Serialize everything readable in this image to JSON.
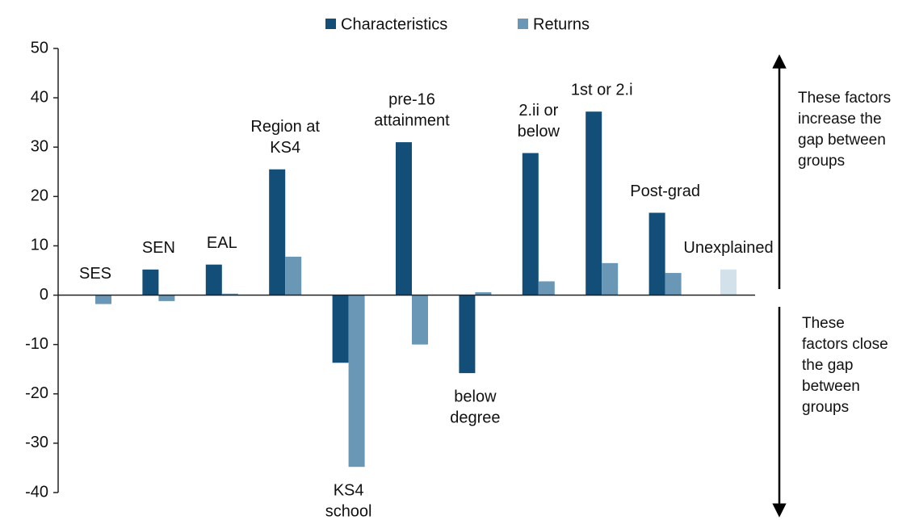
{
  "chart_data": {
    "type": "bar",
    "categories": [
      [
        "SES"
      ],
      [
        "SEN"
      ],
      [
        "EAL"
      ],
      [
        "Region at",
        "KS4"
      ],
      [
        "KS4",
        "school"
      ],
      [
        "pre-16",
        "attainment"
      ],
      [
        "below",
        "degree"
      ],
      [
        "2.ii or",
        "below"
      ],
      [
        "1st or 2.i"
      ],
      [
        "Post-grad"
      ],
      [
        "Unexplained"
      ]
    ],
    "series": [
      {
        "name": "Characteristics",
        "color": "#124e78",
        "values": [
          0,
          5.2,
          6.2,
          25.5,
          -13.7,
          31,
          -15.8,
          28.8,
          37.2,
          16.7,
          null
        ]
      },
      {
        "name": "Returns",
        "color": "#6b97b6",
        "values": [
          -1.8,
          -1.2,
          0.3,
          7.8,
          -34.8,
          -10,
          0.6,
          2.8,
          6.5,
          4.5,
          null
        ]
      }
    ],
    "unexplained": {
      "value": 5.2,
      "color": "#d3e2ea"
    },
    "ylim": [
      -40,
      50
    ],
    "yticks": [
      -40,
      -30,
      -20,
      -10,
      0,
      10,
      20,
      30,
      40,
      50
    ],
    "annotations": {
      "increase": [
        "These factors",
        "increase the",
        "gap between",
        "groups"
      ],
      "close": [
        "These",
        "factors close",
        "the gap",
        "between",
        "groups"
      ]
    }
  }
}
